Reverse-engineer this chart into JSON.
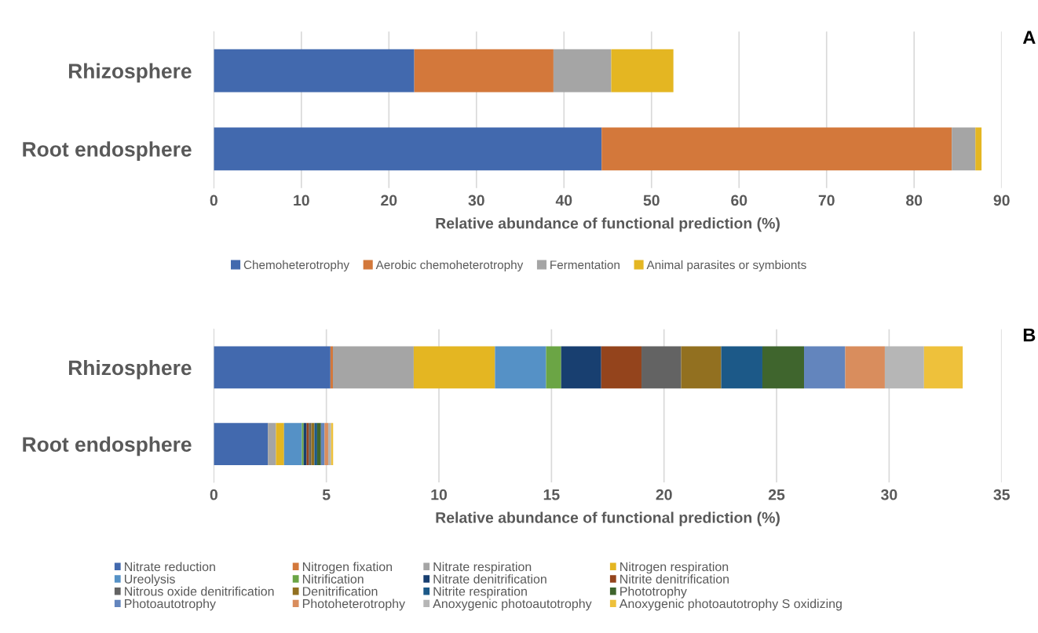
{
  "chart_data": [
    {
      "type": "bar",
      "orientation": "horizontal",
      "stacked": true,
      "categories": [
        "Rhizosphere",
        "Root endosphere"
      ],
      "xlabel": "Relative abundance of functional prediction (%)",
      "xlim": [
        0,
        90
      ],
      "xticks": [
        0,
        10,
        20,
        30,
        40,
        50,
        60,
        70,
        80,
        90
      ],
      "grid": "x",
      "legend": "bottom",
      "annotations": [
        "A"
      ],
      "series": [
        {
          "name": "Chemoheterotrophy",
          "color": "#4269ae",
          "values": [
            22.9,
            44.3
          ]
        },
        {
          "name": "Aerobic chemoheterotrophy",
          "color": "#d3783b",
          "values": [
            15.9,
            40.0
          ]
        },
        {
          "name": "Fermentation",
          "color": "#a5a5a5",
          "values": [
            6.6,
            2.7
          ]
        },
        {
          "name": "Animal parasites or symbionts",
          "color": "#e4b622",
          "values": [
            7.1,
            0.7
          ]
        }
      ]
    },
    {
      "type": "bar",
      "orientation": "horizontal",
      "stacked": true,
      "categories": [
        "Rhizosphere",
        "Root endosphere"
      ],
      "xlabel": "Relative abundance of functional prediction (%)",
      "xlim": [
        0,
        35
      ],
      "xticks": [
        0,
        5,
        10,
        15,
        20,
        25,
        30,
        35
      ],
      "grid": "x",
      "legend": "bottom",
      "annotations": [
        "B"
      ],
      "series": [
        {
          "name": "Nitrate reduction",
          "color": "#4269ae",
          "values": [
            5.18,
            2.4
          ]
        },
        {
          "name": "Nitrogen fixation",
          "color": "#d3783b",
          "values": [
            0.11,
            0
          ]
        },
        {
          "name": "Nitrate respiration",
          "color": "#a5a5a5",
          "values": [
            3.59,
            0.36
          ]
        },
        {
          "name": "Nitrogen respiration",
          "color": "#e4b622",
          "values": [
            3.61,
            0.36
          ]
        },
        {
          "name": "Ureolysis",
          "color": "#5591c6",
          "values": [
            2.27,
            0.79
          ]
        },
        {
          "name": "Nitrification",
          "color": "#6ba545",
          "values": [
            0.67,
            0.08
          ]
        },
        {
          "name": "Nitrate denitrification",
          "color": "#183f70",
          "values": [
            1.78,
            0.13
          ]
        },
        {
          "name": "Nitrite denitrification",
          "color": "#94441c",
          "values": [
            1.79,
            0.1
          ]
        },
        {
          "name": "Nitrous oxide denitrification",
          "color": "#636363",
          "values": [
            1.76,
            0.11
          ]
        },
        {
          "name": "Denitrification",
          "color": "#927020",
          "values": [
            1.78,
            0.14
          ]
        },
        {
          "name": "Nitrite respiration",
          "color": "#1c5988",
          "values": [
            1.83,
            0.12
          ]
        },
        {
          "name": "Phototrophy",
          "color": "#3f652d",
          "values": [
            1.85,
            0.17
          ]
        },
        {
          "name": "Photoautotrophy",
          "color": "#6385bd",
          "values": [
            1.83,
            0.16
          ]
        },
        {
          "name": "Photoheterotrophy",
          "color": "#d98d5d",
          "values": [
            1.76,
            0.16
          ]
        },
        {
          "name": "Anoxygenic photoautotrophy",
          "color": "#b6b6b6",
          "values": [
            1.74,
            0.13
          ]
        },
        {
          "name": "Anoxygenic photoautotrophy S oxidizing",
          "color": "#eec13b",
          "values": [
            1.72,
            0.09
          ]
        }
      ]
    }
  ]
}
